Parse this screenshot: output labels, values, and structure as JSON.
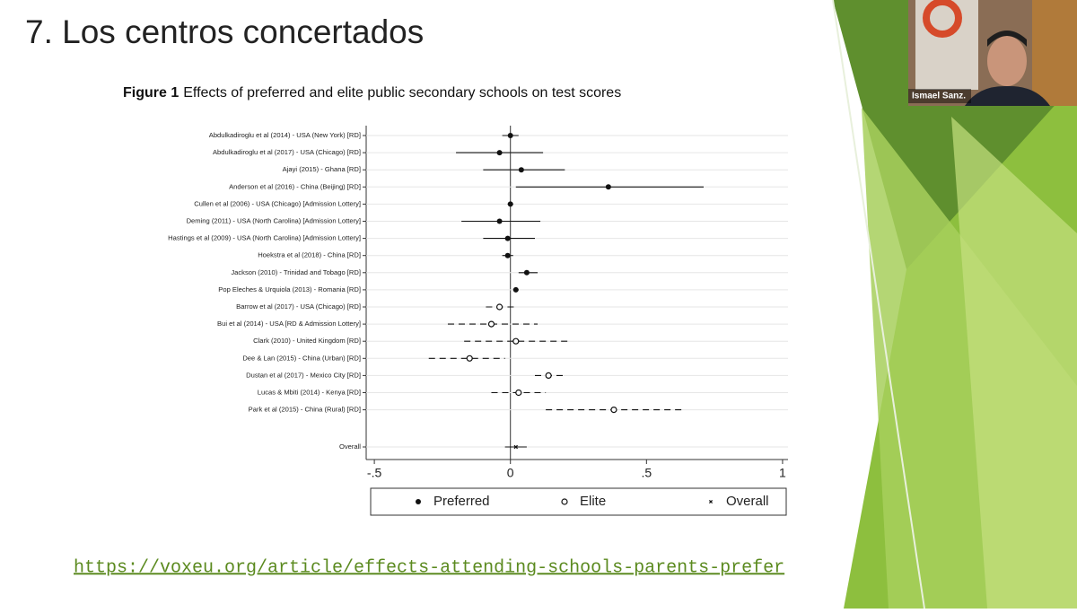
{
  "slide_title": "7. Los centros concertados",
  "chart_data": {
    "type": "forest",
    "figure_label": "Figure 1",
    "title": "Effects of preferred and elite public secondary schools on test scores",
    "categories": [
      "Abdulkadiroglu et al (2014) - USA (New York) [RD]",
      "Abdulkadiroglu et al (2017) - USA (Chicago) [RD]",
      "Ajayi (2015) - Ghana [RD]",
      "Anderson et al (2016) - China (Beijing) [RD]",
      "Cullen et al (2006) - USA (Chicago) [Admission Lottery]",
      "Deming (2011) - USA (North Carolina) [Admission Lottery]",
      "Hastings et al (2009) - USA (North Carolina) [Admission Lottery]",
      "Hoekstra et al (2018) - China [RD]",
      "Jackson (2010) - Trinidad and Tobago [RD]",
      "Pop Eleches & Urquiola (2013) - Romania [RD]",
      "Barrow et al (2017) - USA (Chicago) [RD]",
      "Bui et al (2014) - USA [RD & Admission Lottery]",
      "Clark (2010) - United Kingdom [RD]",
      "Dee & Lan (2015) - China (Urban) [RD]",
      "Dustan et al (2017) - Mexico City [RD]",
      "Lucas & Mbiti (2014) - Kenya [RD]",
      "Park et al (2015) - China (Rural) [RD]",
      "Overall"
    ],
    "series": [
      {
        "name": "Preferred",
        "marker": "filled",
        "line": "solid",
        "color": "#111111",
        "values": [
          0.0,
          -0.04,
          0.04,
          0.36,
          0.0,
          -0.04,
          -0.01,
          -0.01,
          0.06,
          0.02,
          null,
          null,
          null,
          null,
          null,
          null,
          null,
          null
        ],
        "ci_low": [
          -0.03,
          -0.2,
          -0.1,
          0.02,
          -0.01,
          -0.18,
          -0.1,
          -0.03,
          0.03,
          0.01,
          null,
          null,
          null,
          null,
          null,
          null,
          null,
          null
        ],
        "ci_high": [
          0.03,
          0.12,
          0.2,
          0.71,
          0.01,
          0.11,
          0.09,
          0.01,
          0.1,
          0.03,
          null,
          null,
          null,
          null,
          null,
          null,
          null,
          null
        ]
      },
      {
        "name": "Elite",
        "marker": "hollow",
        "line": "dashed",
        "color": "#111111",
        "values": [
          null,
          null,
          null,
          null,
          null,
          null,
          null,
          null,
          null,
          null,
          -0.04,
          -0.07,
          0.02,
          -0.15,
          0.14,
          0.03,
          0.38,
          null
        ],
        "ci_low": [
          null,
          null,
          null,
          null,
          null,
          null,
          null,
          null,
          null,
          null,
          -0.09,
          -0.23,
          -0.17,
          -0.3,
          0.09,
          -0.07,
          0.13,
          null
        ],
        "ci_high": [
          null,
          null,
          null,
          null,
          null,
          null,
          null,
          null,
          null,
          null,
          0.02,
          0.1,
          0.22,
          -0.02,
          0.2,
          0.13,
          0.64,
          null
        ]
      },
      {
        "name": "Overall",
        "marker": "x",
        "line": "solid",
        "color": "#111111",
        "values": [
          null,
          null,
          null,
          null,
          null,
          null,
          null,
          null,
          null,
          null,
          null,
          null,
          null,
          null,
          null,
          null,
          null,
          0.02
        ],
        "ci_low": [
          null,
          null,
          null,
          null,
          null,
          null,
          null,
          null,
          null,
          null,
          null,
          null,
          null,
          null,
          null,
          null,
          null,
          -0.02
        ],
        "ci_high": [
          null,
          null,
          null,
          null,
          null,
          null,
          null,
          null,
          null,
          null,
          null,
          null,
          null,
          null,
          null,
          null,
          null,
          0.06
        ]
      }
    ],
    "xlim": [
      -0.53,
      1.02
    ],
    "xticks": [
      {
        "value": -0.5,
        "label": "-.5"
      },
      0,
      {
        "value": 0.5,
        "label": ".5"
      },
      1
    ],
    "grid": true
  },
  "link": "https://voxeu.org/article/effects-attending-schools-parents-prefer",
  "webcam_name": "Ismael Sanz."
}
